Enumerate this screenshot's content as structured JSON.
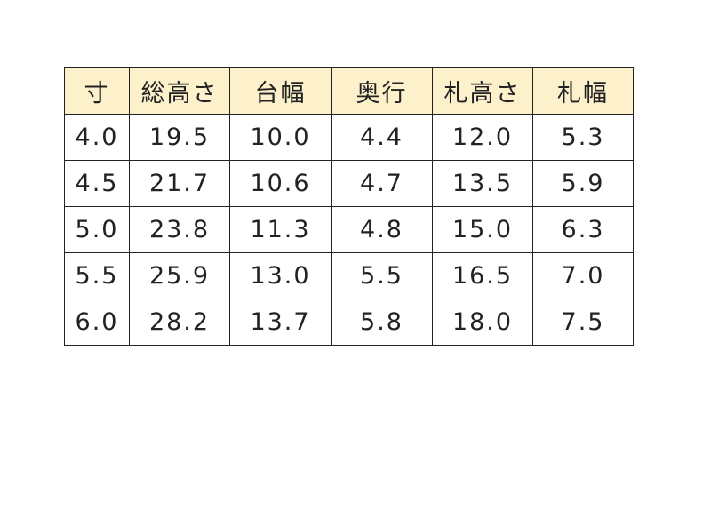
{
  "table": {
    "headers": [
      "寸",
      "総高さ",
      "台幅",
      "奥行",
      "札高さ",
      "札幅"
    ],
    "rows": [
      [
        "4.0",
        "19.5",
        "10.0",
        "4.4",
        "12.0",
        "5.3"
      ],
      [
        "4.5",
        "21.7",
        "10.6",
        "4.7",
        "13.5",
        "5.9"
      ],
      [
        "5.0",
        "23.8",
        "11.3",
        "4.8",
        "15.0",
        "6.3"
      ],
      [
        "5.5",
        "25.9",
        "13.0",
        "5.5",
        "16.5",
        "7.0"
      ],
      [
        "6.0",
        "28.2",
        "13.7",
        "5.8",
        "18.0",
        "7.5"
      ]
    ],
    "header_bg": "#fdf1cc"
  }
}
